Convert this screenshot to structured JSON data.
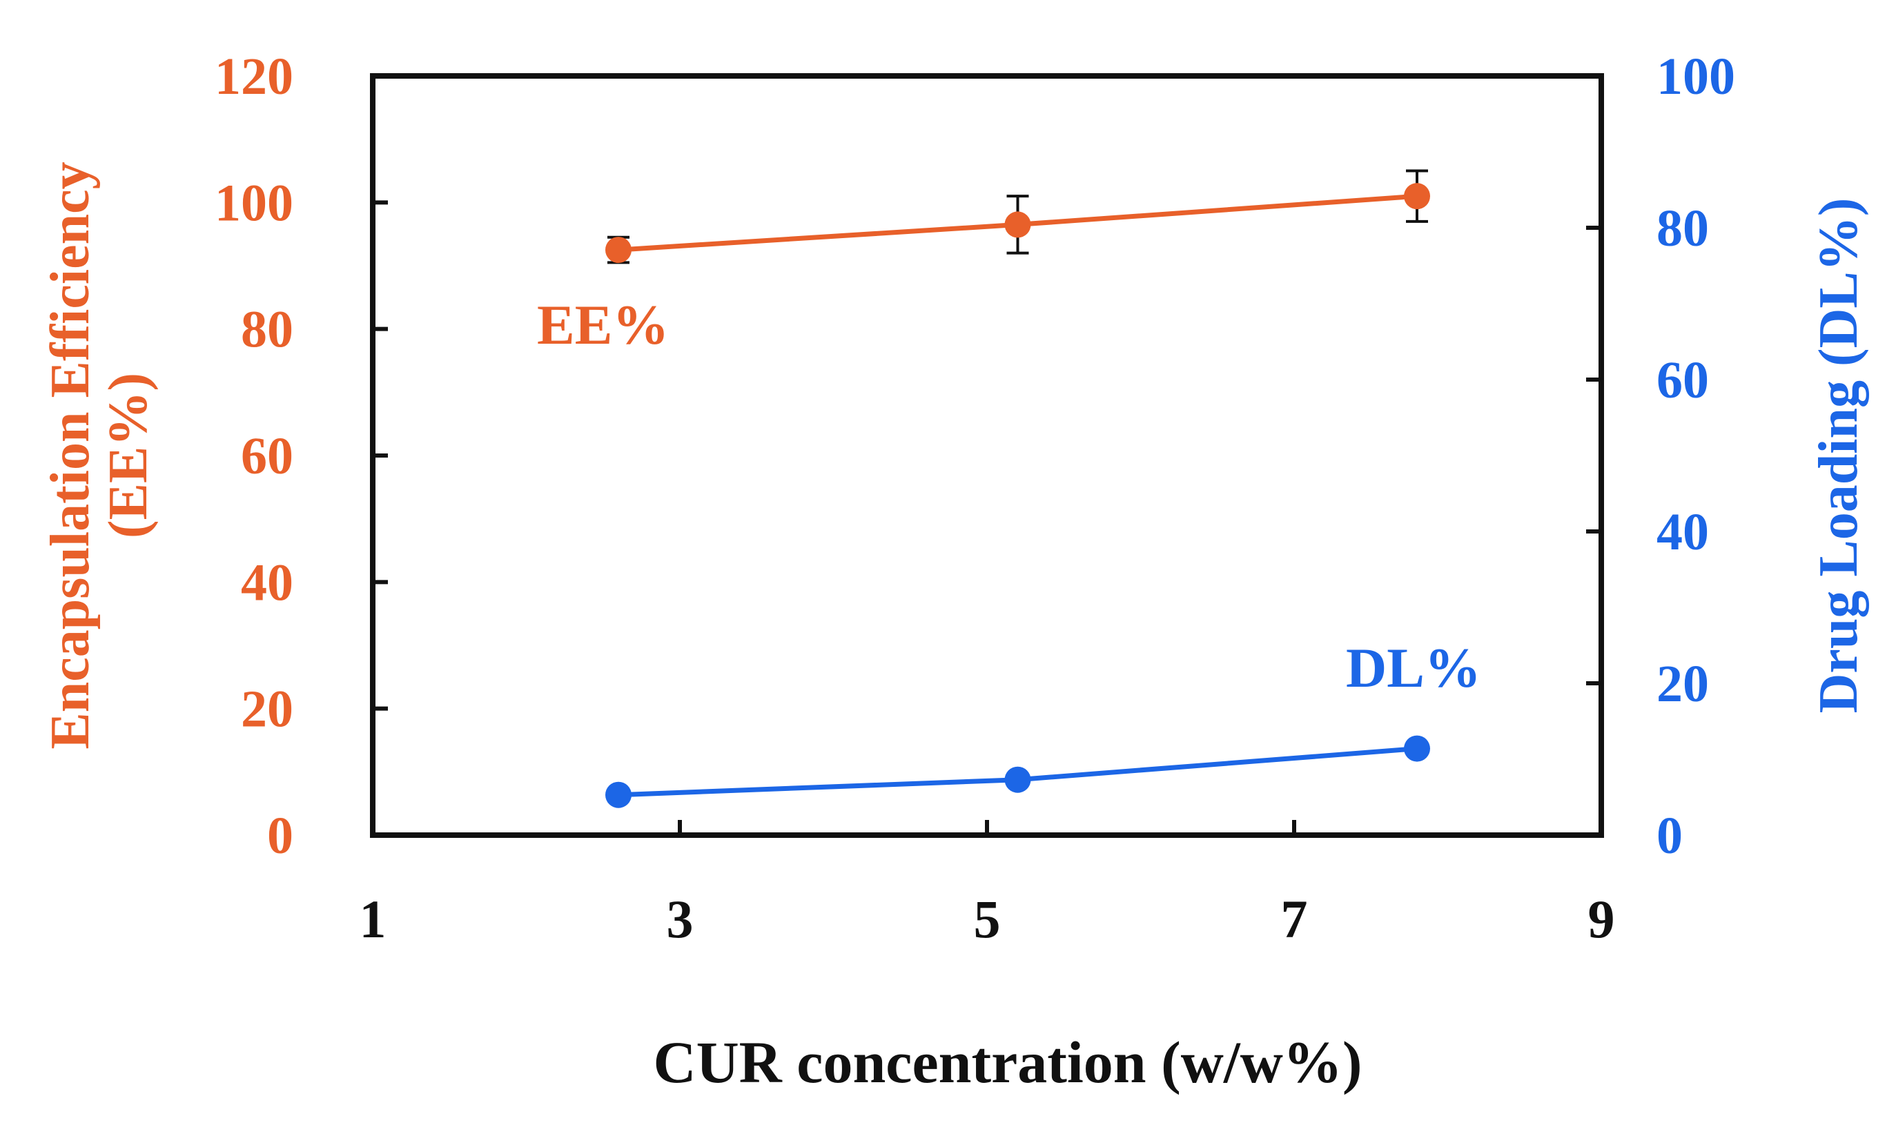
{
  "chart_data": {
    "type": "line",
    "title": "",
    "xlabel": "CUR concentration (w/w%)",
    "ylabel_left": [
      "Encapsulation Efficiency",
      "(EE%)"
    ],
    "ylabel_right": "Drug Loading (DL%)",
    "xlim": [
      1,
      9
    ],
    "xticks": [
      "1",
      "3",
      "5",
      "7",
      "9"
    ],
    "ylim_left": [
      0,
      120
    ],
    "yticks_left": [
      "0",
      "20",
      "40",
      "60",
      "80",
      "100",
      "120"
    ],
    "ylim_right": [
      0,
      100
    ],
    "yticks_right": [
      "0",
      "20",
      "40",
      "60",
      "80",
      "100"
    ],
    "grid": false,
    "colors": {
      "ee": "#E8602A",
      "dl": "#1C66E6",
      "axis": "#111111"
    },
    "series": [
      {
        "name": "EE%",
        "label": "EE%",
        "axis": "left",
        "x": [
          2.6,
          5.2,
          7.8
        ],
        "y": [
          92.5,
          96.5,
          101
        ],
        "error": [
          2.0,
          4.5,
          4.0
        ]
      },
      {
        "name": "DL%",
        "label": "DL%",
        "axis": "right",
        "x": [
          2.6,
          5.2,
          7.8
        ],
        "y": [
          5.3,
          7.3,
          11.4
        ],
        "error": [
          0,
          0,
          0
        ]
      }
    ]
  }
}
